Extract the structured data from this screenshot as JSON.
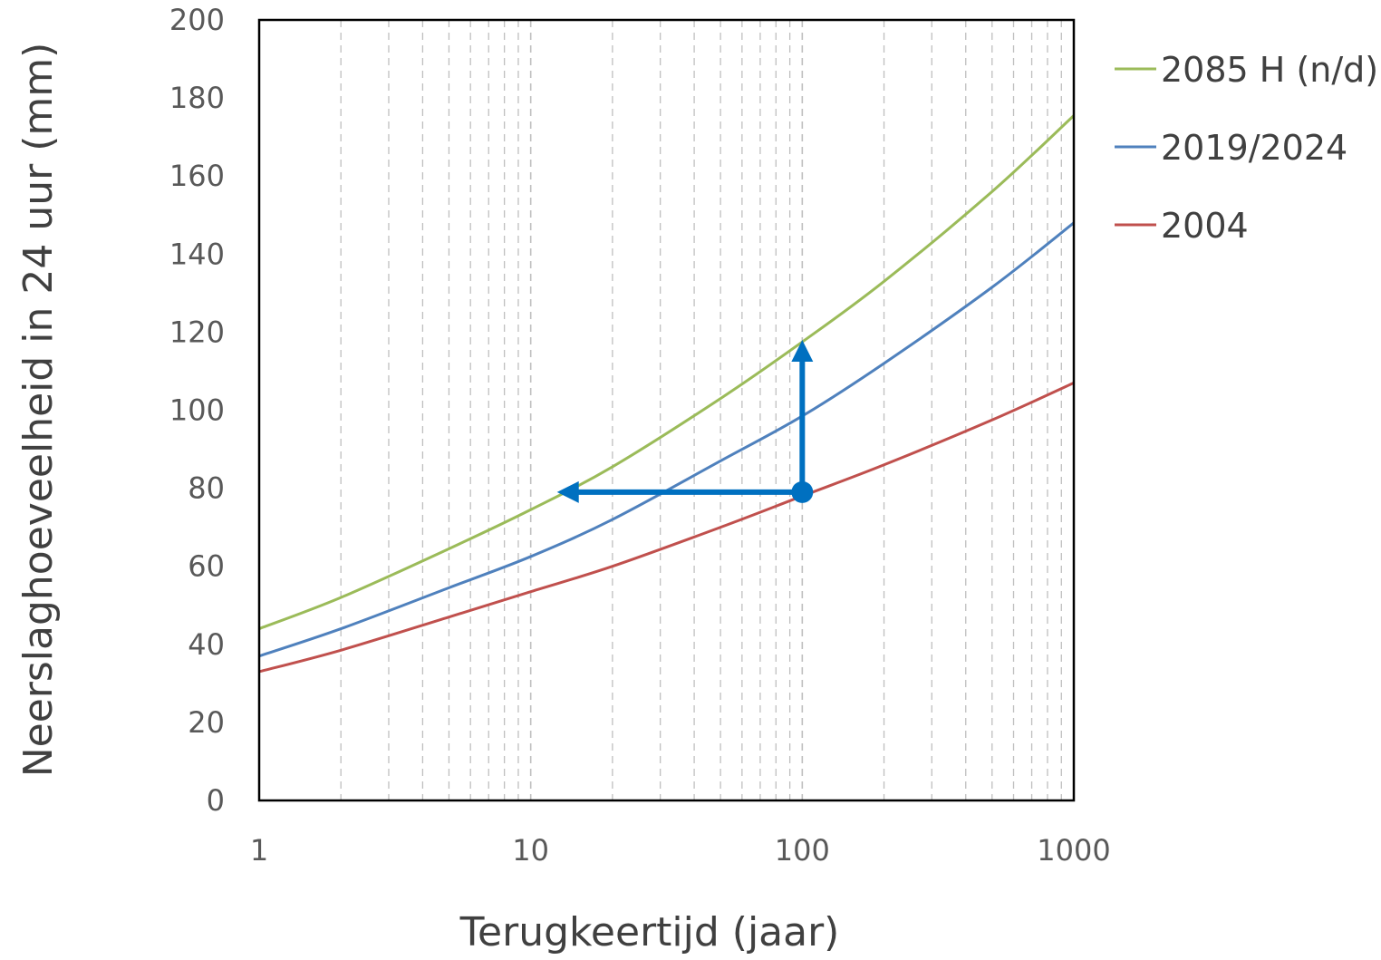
{
  "chart_data": {
    "type": "line",
    "xscale": "log",
    "xlim": [
      1,
      1000
    ],
    "ylim": [
      0,
      200
    ],
    "xticks": [
      "1",
      "10",
      "100",
      "1000"
    ],
    "yticks": [
      "0",
      "20",
      "40",
      "60",
      "80",
      "100",
      "120",
      "140",
      "160",
      "180",
      "200"
    ],
    "xlabel": "Terugkeertijd (jaar)",
    "ylabel": "Neerslaghoeveelheid in 24 uur (mm)",
    "grid": "vertical minor dashed",
    "legend_position": "right",
    "series": [
      {
        "name": "2085 H (n/d)",
        "color": "#9BBB59",
        "x": [
          1,
          2,
          5,
          10,
          20,
          50,
          100,
          200,
          500,
          1000
        ],
        "y": [
          44,
          52,
          64.5,
          74.5,
          85.5,
          103,
          117.5,
          133,
          156,
          175.5
        ]
      },
      {
        "name": "2019/2024",
        "color": "#4F81BD",
        "x": [
          1,
          2,
          5,
          10,
          20,
          50,
          100,
          200,
          500,
          1000
        ],
        "y": [
          37,
          44,
          54.5,
          62.5,
          72,
          87,
          98.5,
          112,
          131.5,
          148
        ]
      },
      {
        "name": "2004",
        "color": "#C0504D",
        "x": [
          1,
          2,
          5,
          10,
          20,
          50,
          100,
          200,
          500,
          1000
        ],
        "y": [
          33,
          38.5,
          47,
          53.5,
          60,
          70,
          78,
          86,
          97.5,
          107
        ]
      }
    ],
    "annotations": {
      "color": "#0070C0",
      "marker": {
        "x": 100,
        "y": 79
      },
      "arrow_up": {
        "from": {
          "x": 100,
          "y": 79
        },
        "to": {
          "x": 100,
          "y": 118
        }
      },
      "arrow_left": {
        "from": {
          "x": 100,
          "y": 79
        },
        "to": {
          "x": 12.5,
          "y": 79
        }
      }
    }
  }
}
